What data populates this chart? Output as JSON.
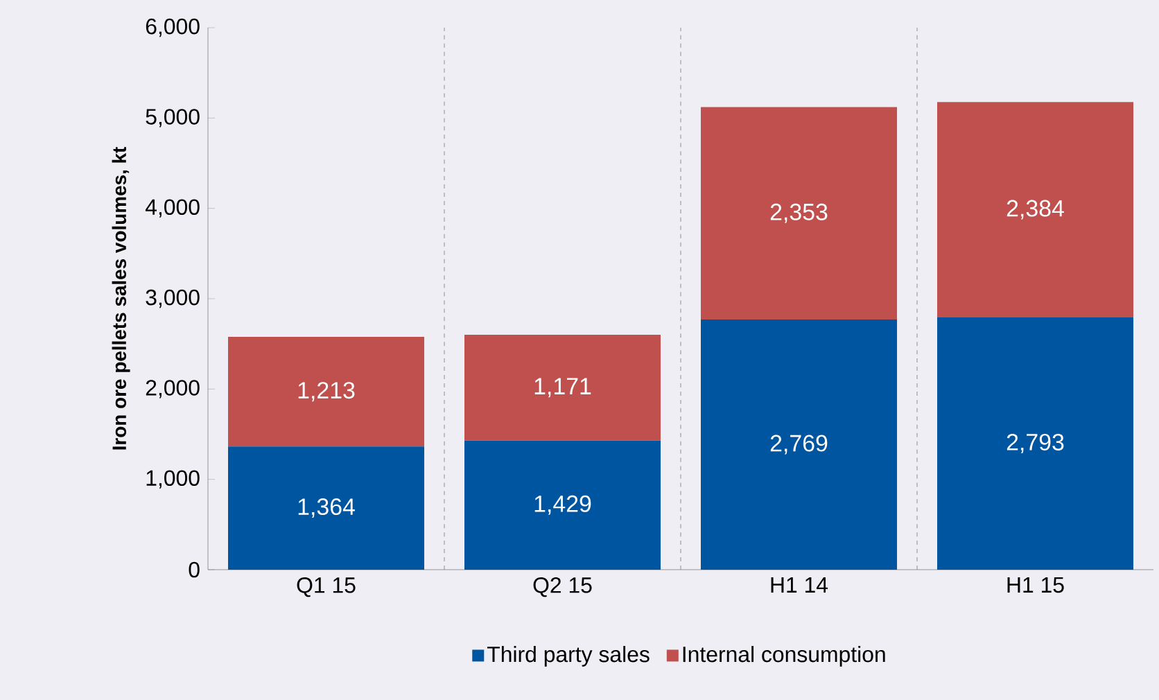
{
  "chart_data": {
    "type": "bar",
    "stacked": true,
    "ylabel": "Iron ore pellets sales volumes, kt",
    "categories": [
      "Q1 15",
      "Q2 15",
      "H1 14",
      "H1 15"
    ],
    "series": [
      {
        "name": "Third party sales",
        "color": "#0055a0",
        "values": [
          1364,
          1429,
          2769,
          2793
        ],
        "value_labels": [
          "1,364",
          "1,429",
          "2,769",
          "2,793"
        ]
      },
      {
        "name": "Internal consumption",
        "color": "#c0504d",
        "values": [
          1213,
          1171,
          2353,
          2384
        ],
        "value_labels": [
          "1,213",
          "1,171",
          "2,353",
          "2,384"
        ]
      }
    ],
    "ylim": [
      0,
      6000
    ],
    "yticks": [
      0,
      {
        "value": 1000,
        "label": "1,000"
      },
      {
        "value": 2000,
        "label": "2,000"
      },
      {
        "value": 3000,
        "label": "3,000"
      },
      {
        "value": 4000,
        "label": "4,000"
      },
      {
        "value": 5000,
        "label": "5,000"
      },
      {
        "value": 6000,
        "label": "6,000"
      }
    ],
    "grid": "x",
    "legend": "bottom"
  }
}
